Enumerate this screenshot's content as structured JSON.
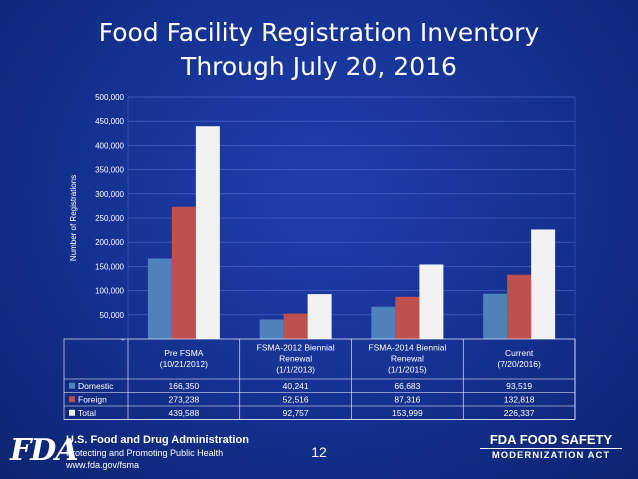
{
  "title": {
    "line1": "Food Facility Registration Inventory",
    "line2": "Through July 20, 2016"
  },
  "chart_data": {
    "type": "bar",
    "title": "Food Facility Registration Inventory Through July 20, 2016",
    "ylabel": "Number of Registrations",
    "xlabel": "",
    "ylim": [
      0,
      500000
    ],
    "yticks": [
      "-",
      "50,000",
      "100,000",
      "150,000",
      "200,000",
      "250,000",
      "300,000",
      "350,000",
      "400,000",
      "450,000",
      "500,000"
    ],
    "categories": [
      [
        "Pre FSMA",
        "(10/21/2012)"
      ],
      [
        "FSMA-2012 Biennial",
        "Renewal",
        "(1/1/2013)"
      ],
      [
        "FSMA-2014 Biennial",
        "Renewal",
        "(1/1/2015)"
      ],
      [
        "Current",
        "(7/20/2016)"
      ]
    ],
    "series": [
      {
        "name": "Domestic",
        "color": "#4f81bd",
        "values": [
          166350,
          40241,
          66683,
          93519
        ],
        "labels": [
          "166,350",
          "40,241",
          "66,683",
          "93,519"
        ]
      },
      {
        "name": "Foreign",
        "color": "#c0504d",
        "values": [
          273238,
          52516,
          87316,
          132818
        ],
        "labels": [
          "273,238",
          "52,516",
          "87,316",
          "132,818"
        ]
      },
      {
        "name": "Total",
        "color": "#f2f2f2",
        "values": [
          439588,
          92757,
          153999,
          226337
        ],
        "labels": [
          "439,588",
          "92,757",
          "153,999",
          "226,337"
        ]
      }
    ]
  },
  "footer": {
    "logo_text": "FDA",
    "org_name": "U.S. Food and Drug Administration",
    "tagline": "Protecting and Promoting Public Health",
    "url": "www.fda.gov/fsma",
    "page_number": "12",
    "fsma_line1": "FDA FOOD SAFETY",
    "fsma_line2": "MODERNIZATION ACT"
  }
}
